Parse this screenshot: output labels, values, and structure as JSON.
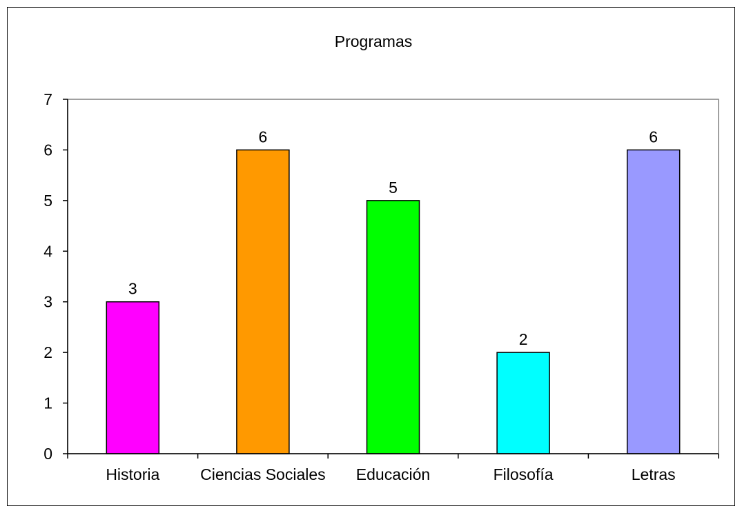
{
  "chart_data": {
    "type": "bar",
    "title": "Programas",
    "xlabel": "",
    "ylabel": "",
    "categories": [
      "Historia",
      "Ciencias Sociales",
      "Educación",
      "Filosofía",
      "Letras"
    ],
    "values": [
      3,
      6,
      5,
      2,
      6
    ],
    "data_labels": [
      "3",
      "6",
      "5",
      "2",
      "6"
    ],
    "bar_colors": [
      "#ff00ff",
      "#ff9900",
      "#00ff00",
      "#00ffff",
      "#9999ff"
    ],
    "ylim": [
      0,
      7
    ],
    "yticks": [
      0,
      1,
      2,
      3,
      4,
      5,
      6,
      7
    ],
    "ytick_labels": [
      "0",
      "1",
      "2",
      "3",
      "4",
      "5",
      "6",
      "7"
    ],
    "grid": false,
    "legend": "none",
    "plot_border_color": "#808080",
    "bar_edge_color": "#000000"
  }
}
